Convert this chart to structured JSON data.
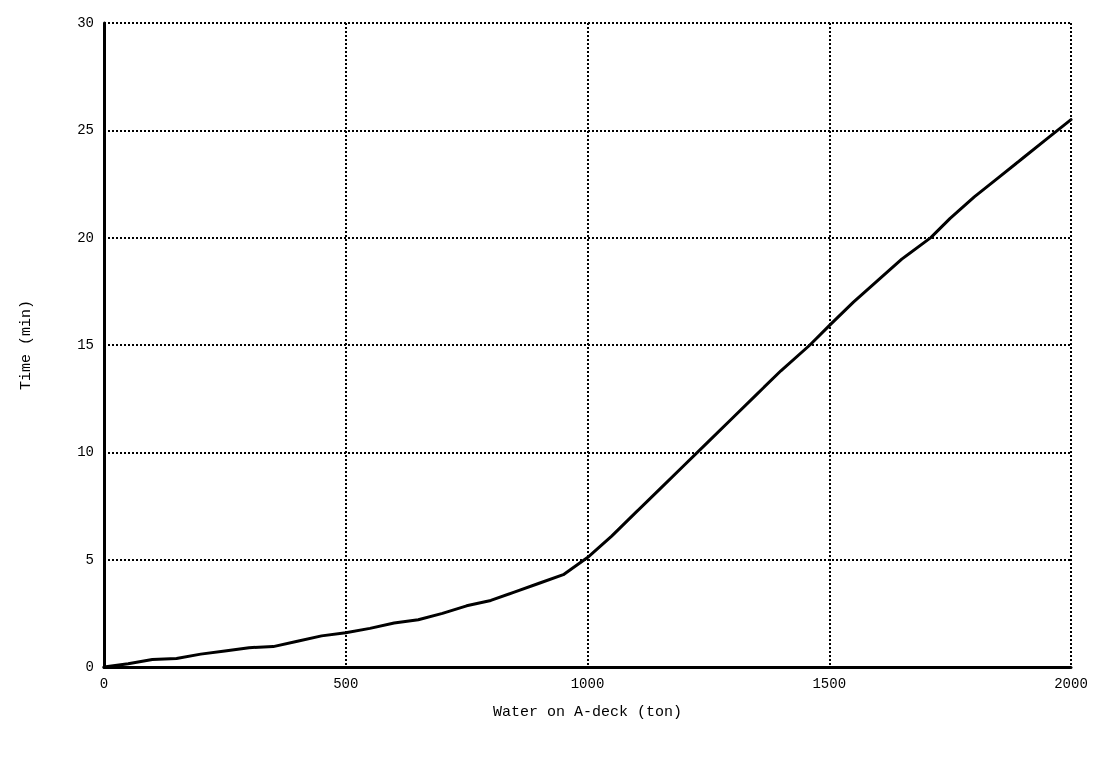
{
  "chart_data": {
    "type": "line",
    "xlabel": "Water on A-deck (ton)",
    "ylabel": "Time (min)",
    "x": [
      0,
      50,
      100,
      150,
      200,
      250,
      300,
      350,
      400,
      450,
      500,
      550,
      600,
      650,
      700,
      750,
      800,
      850,
      900,
      950,
      1000,
      1050,
      1100,
      1150,
      1200,
      1250,
      1300,
      1350,
      1400,
      1460,
      1500,
      1550,
      1600,
      1650,
      1710,
      1750,
      1800,
      1850,
      1900,
      1950,
      2000
    ],
    "series": [
      {
        "color": "#000000",
        "values": [
          0,
          0.15,
          0.35,
          0.4,
          0.6,
          0.75,
          0.9,
          0.95,
          1.2,
          1.45,
          1.6,
          1.8,
          2.05,
          2.2,
          2.5,
          2.85,
          3.1,
          3.5,
          3.9,
          4.3,
          5.1,
          6.1,
          7.2,
          8.3,
          9.4,
          10.5,
          11.6,
          12.7,
          13.8,
          15,
          15.9,
          17.0,
          18.0,
          19.0,
          20,
          20.9,
          21.9,
          22.8,
          23.7,
          24.6,
          25.5
        ]
      }
    ],
    "xlim": [
      0,
      2000
    ],
    "xticks": [
      0,
      500,
      1000,
      1500,
      2000
    ],
    "ylim": [
      0,
      30
    ],
    "yticks": [
      0,
      5,
      10,
      15,
      20,
      25,
      30
    ],
    "grid": true,
    "marker": "none",
    "line_style": "solid"
  }
}
